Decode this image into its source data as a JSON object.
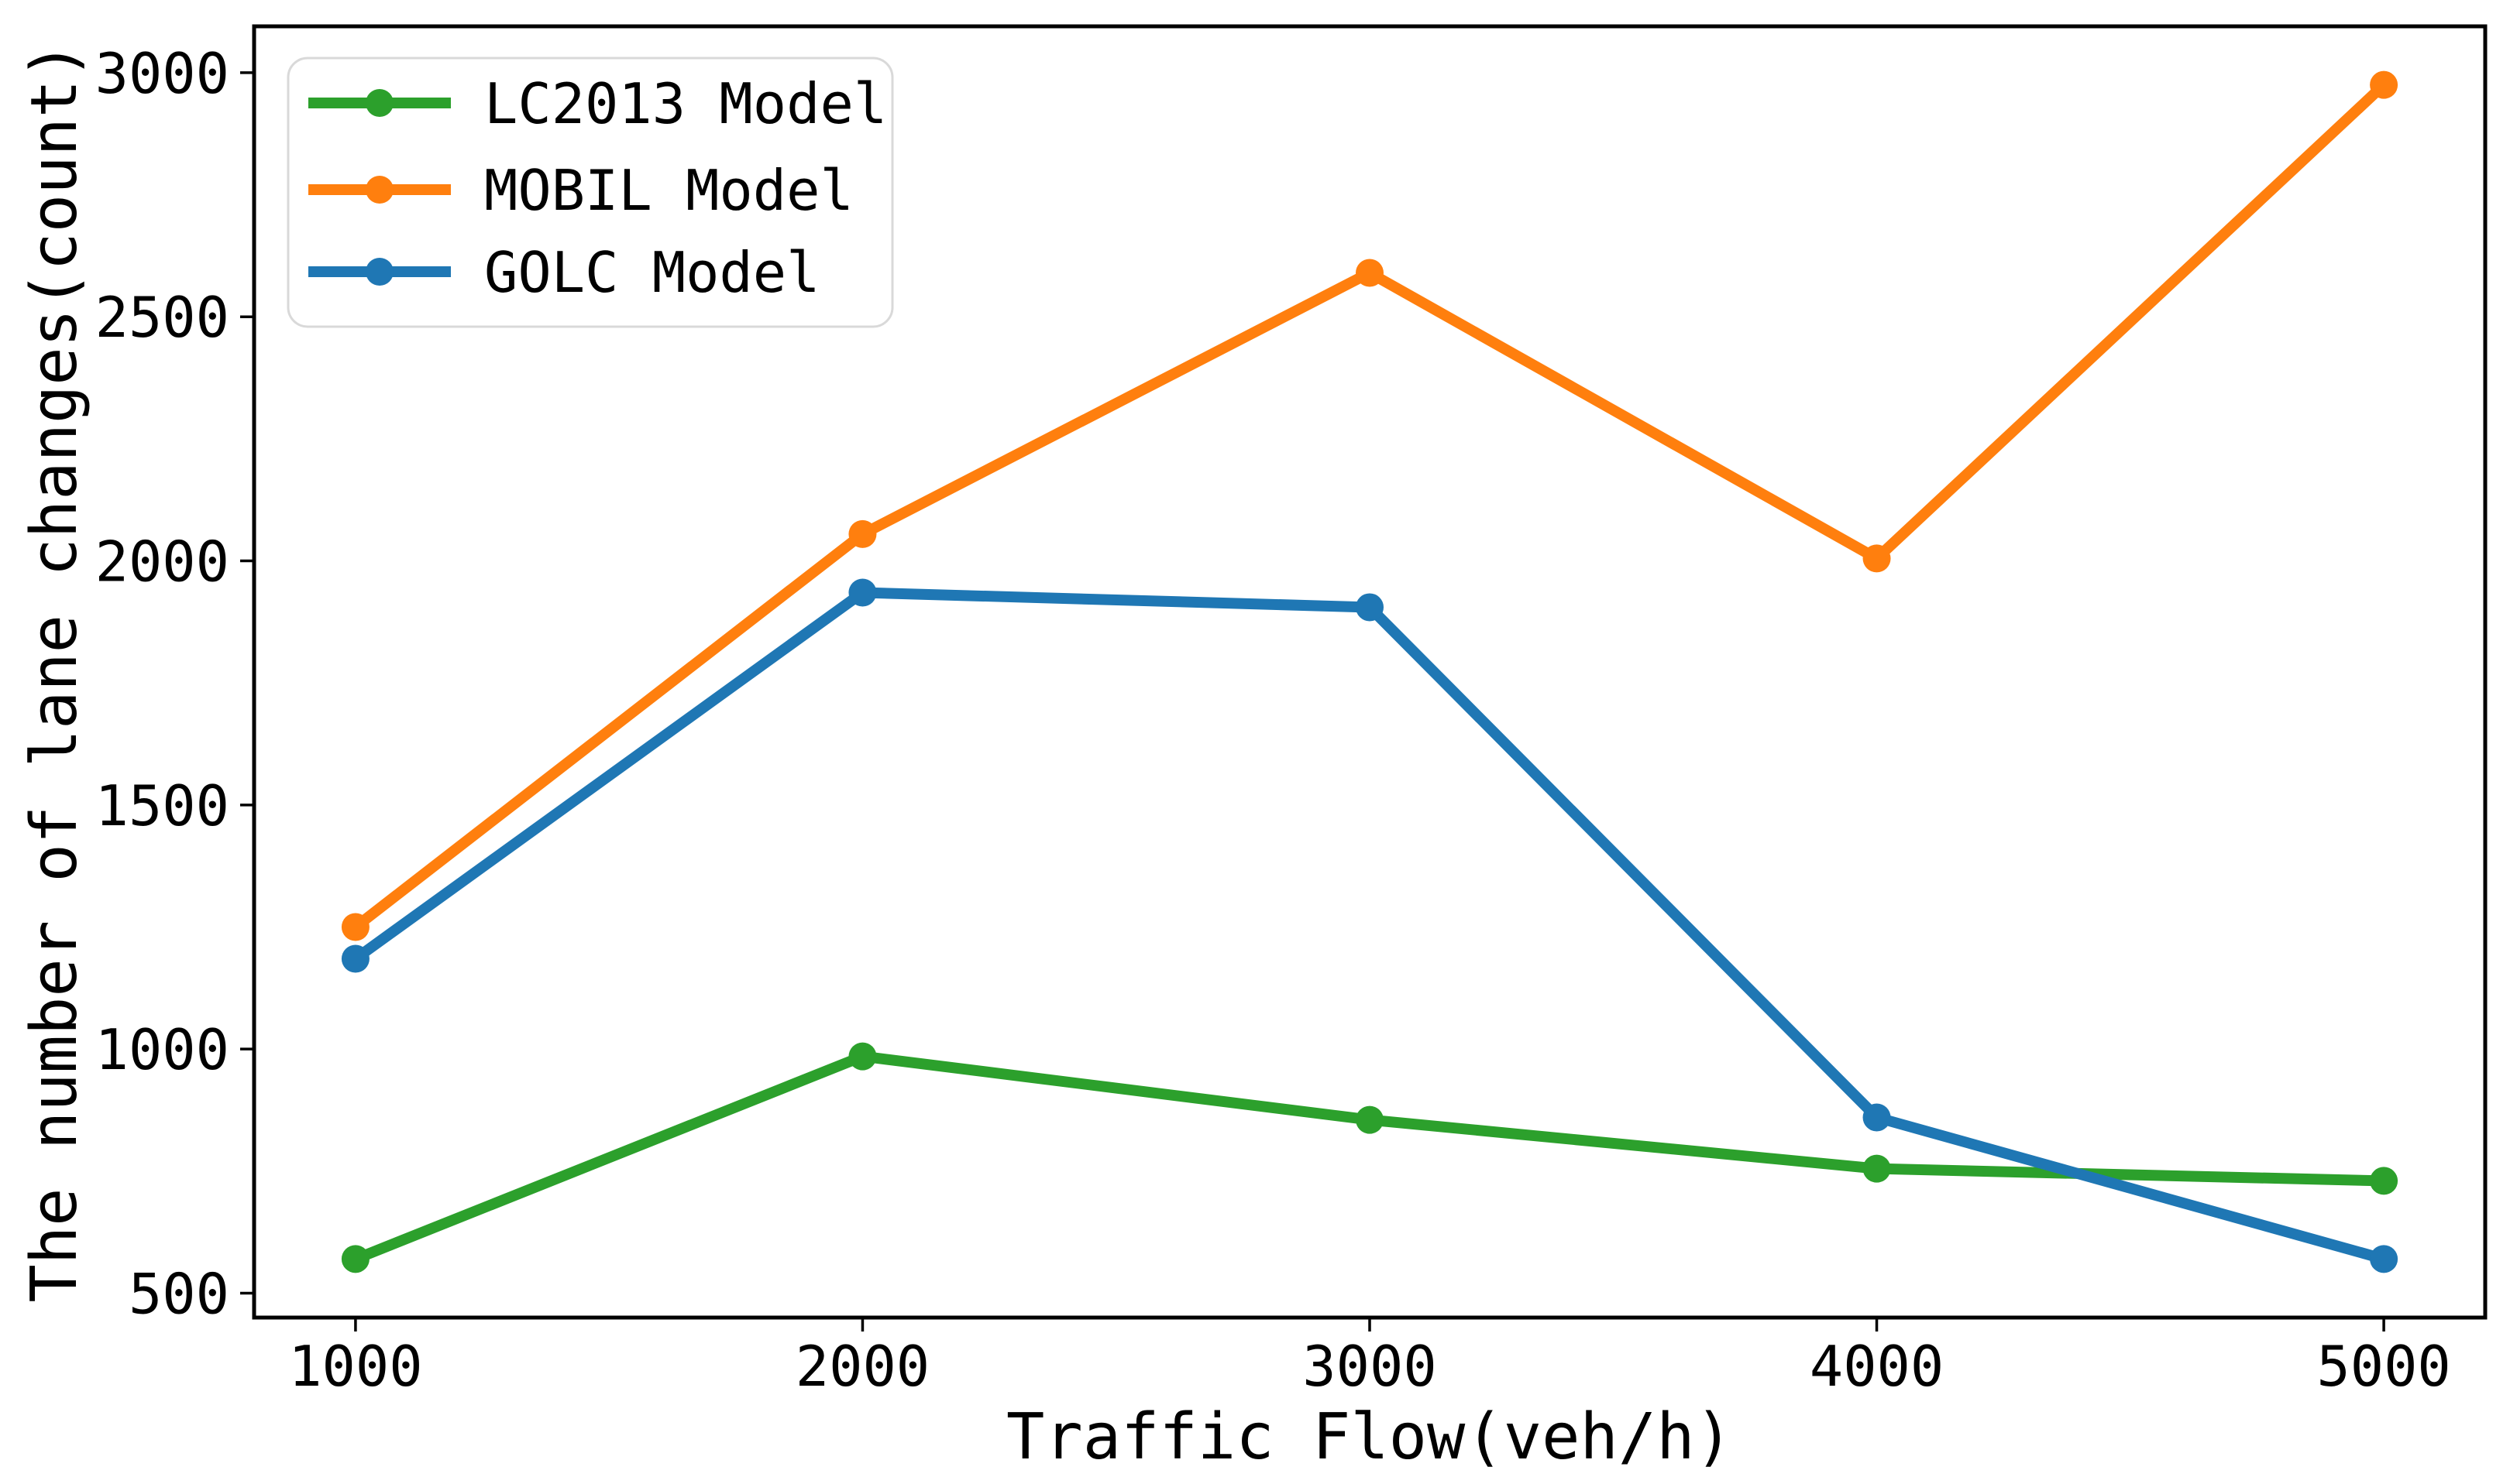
{
  "chart_data": {
    "type": "line",
    "title": "",
    "xlabel": "Traffic Flow(veh/h)",
    "ylabel": "The number of lane changes(count)",
    "x": [
      1000,
      2000,
      3000,
      4000,
      5000
    ],
    "x_tick_labels": [
      "1000",
      "2000",
      "3000",
      "4000",
      "5000"
    ],
    "y_ticks": [
      500,
      1000,
      1500,
      2000,
      2500,
      3000
    ],
    "y_tick_labels": [
      "500",
      "1000",
      "1500",
      "2000",
      "2500",
      "3000"
    ],
    "xlim": [
      800,
      5200
    ],
    "ylim": [
      450,
      3095
    ],
    "grid": false,
    "marker": "circle",
    "axis_color": "#000000",
    "legend": {
      "position": "upper-left",
      "border_color": "#d9d9d9",
      "background": "#ffffff"
    },
    "series": [
      {
        "name": "LC2013 Model",
        "color": "#2ca02c",
        "values": [
          570,
          985,
          855,
          755,
          730
        ]
      },
      {
        "name": "MOBIL Model",
        "color": "#ff7f0e",
        "values": [
          1250,
          2055,
          2590,
          2005,
          2975
        ]
      },
      {
        "name": "GOLC Model",
        "color": "#1f77b4",
        "values": [
          1185,
          1935,
          1905,
          860,
          570
        ]
      }
    ]
  }
}
